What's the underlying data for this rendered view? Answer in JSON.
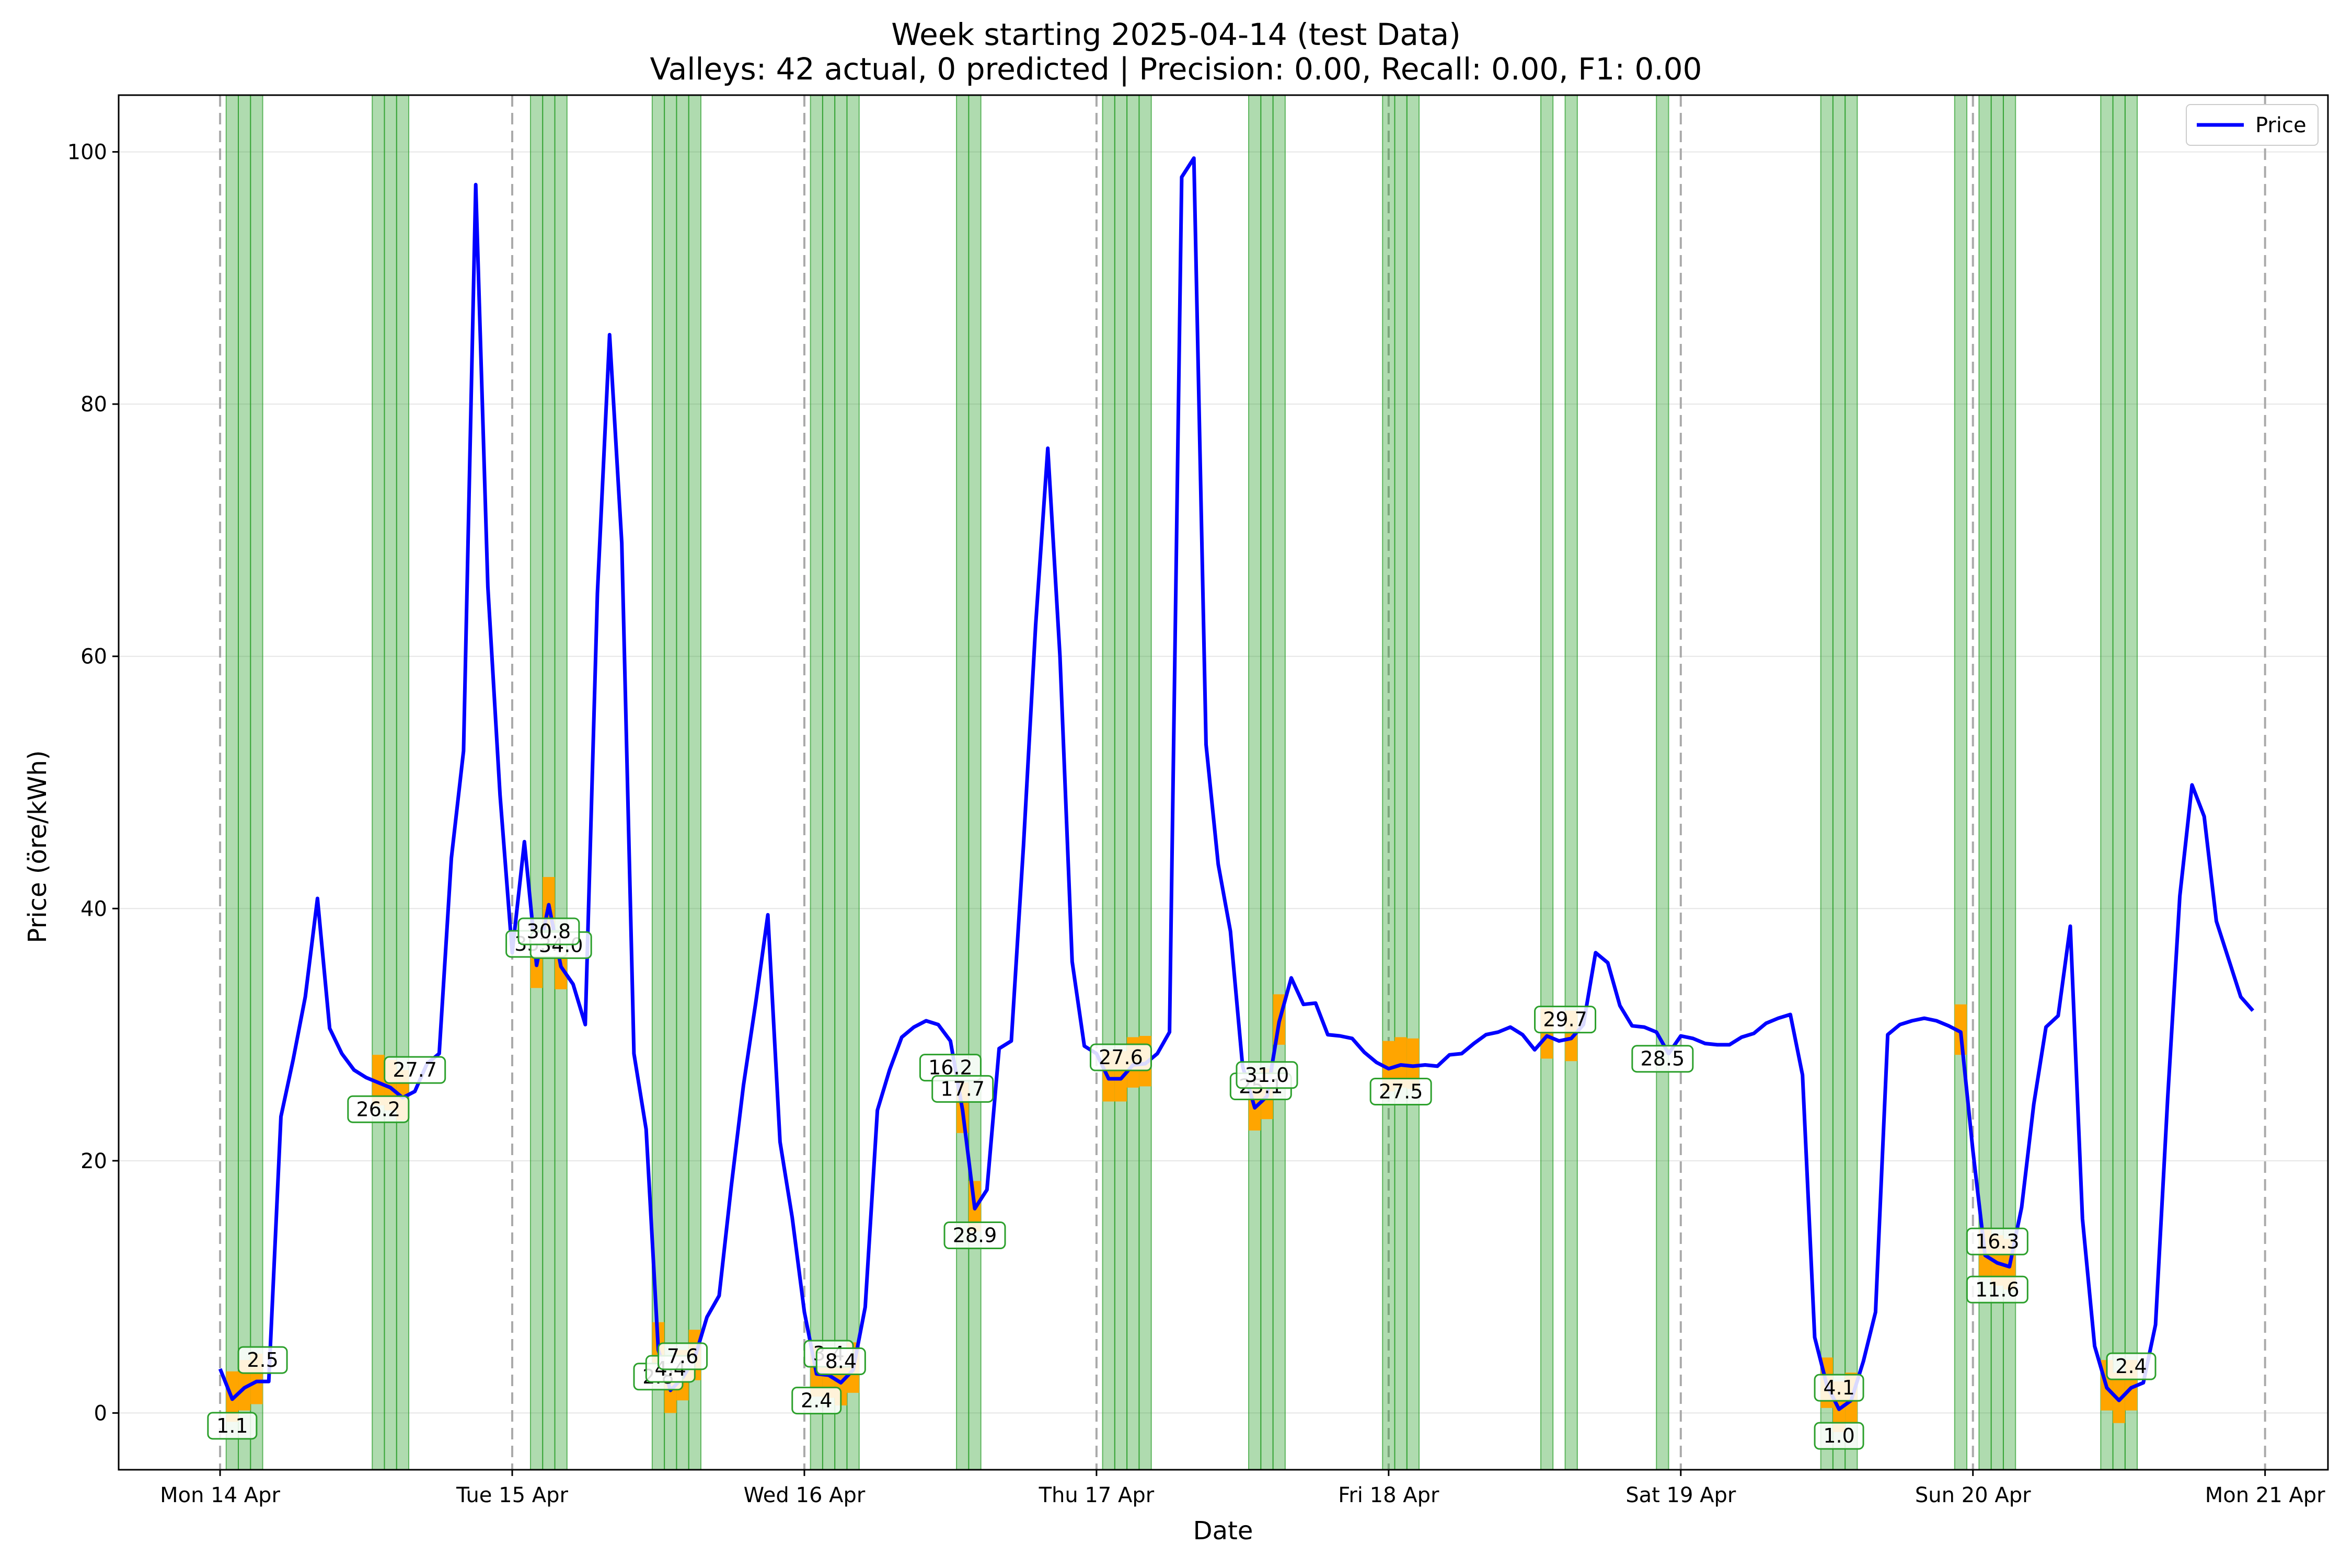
{
  "chart_data": {
    "type": "line",
    "title": "Week starting 2025-04-14 (test Data)",
    "subtitle": "Valleys: 42 actual, 0 predicted | Precision: 0.00, Recall: 0.00, F1: 0.00",
    "xlabel": "Date",
    "ylabel": "Price (öre/kWh)",
    "xlim": [
      "2025-04-13T15:40",
      "2025-04-21T05:10"
    ],
    "ylim": [
      -4.5,
      104.5
    ],
    "yticks": [
      0,
      20,
      40,
      60,
      80,
      100
    ],
    "xticks": [
      {
        "date": "2025-04-14",
        "label": "Mon 14 Apr"
      },
      {
        "date": "2025-04-15",
        "label": "Tue 15 Apr"
      },
      {
        "date": "2025-04-16",
        "label": "Wed 16 Apr"
      },
      {
        "date": "2025-04-17",
        "label": "Thu 17 Apr"
      },
      {
        "date": "2025-04-18",
        "label": "Fri 18 Apr"
      },
      {
        "date": "2025-04-19",
        "label": "Sat 19 Apr"
      },
      {
        "date": "2025-04-20",
        "label": "Sun 20 Apr"
      },
      {
        "date": "2025-04-21",
        "label": "Mon 21 Apr"
      }
    ],
    "grid": "horizontal",
    "legend": {
      "position": "top-right",
      "entries": [
        "Price"
      ]
    },
    "colors": {
      "price": "#0000ff",
      "valley_span": "#2ca02c",
      "valley_bar": "#ffa500",
      "day_line": "#aaaaaa",
      "label_border": "#2ca02c"
    },
    "series": [
      {
        "name": "Price",
        "x": [
          "2025-04-14T00:00",
          "2025-04-14T01:00",
          "2025-04-14T02:00",
          "2025-04-14T03:00",
          "2025-04-14T04:00",
          "2025-04-14T05:00",
          "2025-04-14T06:00",
          "2025-04-14T07:00",
          "2025-04-14T08:00",
          "2025-04-14T09:00",
          "2025-04-14T10:00",
          "2025-04-14T11:00",
          "2025-04-14T12:00",
          "2025-04-14T13:00",
          "2025-04-14T14:00",
          "2025-04-14T15:00",
          "2025-04-14T16:00",
          "2025-04-14T17:00",
          "2025-04-14T18:00",
          "2025-04-14T19:00",
          "2025-04-14T20:00",
          "2025-04-14T21:00",
          "2025-04-14T22:00",
          "2025-04-14T23:00",
          "2025-04-15T00:00",
          "2025-04-15T01:00",
          "2025-04-15T02:00",
          "2025-04-15T03:00",
          "2025-04-15T04:00",
          "2025-04-15T05:00",
          "2025-04-15T06:00",
          "2025-04-15T07:00",
          "2025-04-15T08:00",
          "2025-04-15T09:00",
          "2025-04-15T10:00",
          "2025-04-15T11:00",
          "2025-04-15T12:00",
          "2025-04-15T13:00",
          "2025-04-15T14:00",
          "2025-04-15T15:00",
          "2025-04-15T16:00",
          "2025-04-15T17:00",
          "2025-04-15T18:00",
          "2025-04-15T19:00",
          "2025-04-15T20:00",
          "2025-04-15T21:00",
          "2025-04-15T22:00",
          "2025-04-15T23:00",
          "2025-04-16T00:00",
          "2025-04-16T01:00",
          "2025-04-16T02:00",
          "2025-04-16T03:00",
          "2025-04-16T04:00",
          "2025-04-16T05:00",
          "2025-04-16T06:00",
          "2025-04-16T07:00",
          "2025-04-16T08:00",
          "2025-04-16T09:00",
          "2025-04-16T10:00",
          "2025-04-16T11:00",
          "2025-04-16T12:00",
          "2025-04-16T13:00",
          "2025-04-16T14:00",
          "2025-04-16T15:00",
          "2025-04-16T16:00",
          "2025-04-16T17:00",
          "2025-04-16T18:00",
          "2025-04-16T19:00",
          "2025-04-16T20:00",
          "2025-04-16T21:00",
          "2025-04-16T22:00",
          "2025-04-16T23:00",
          "2025-04-17T00:00",
          "2025-04-17T01:00",
          "2025-04-17T02:00",
          "2025-04-17T03:00",
          "2025-04-17T04:00",
          "2025-04-17T05:00",
          "2025-04-17T06:00",
          "2025-04-17T07:00",
          "2025-04-17T08:00",
          "2025-04-17T09:00",
          "2025-04-17T10:00",
          "2025-04-17T11:00",
          "2025-04-17T12:00",
          "2025-04-17T13:00",
          "2025-04-17T14:00",
          "2025-04-17T15:00",
          "2025-04-17T16:00",
          "2025-04-17T17:00",
          "2025-04-17T18:00",
          "2025-04-17T19:00",
          "2025-04-17T20:00",
          "2025-04-17T21:00",
          "2025-04-17T22:00",
          "2025-04-17T23:00",
          "2025-04-18T00:00",
          "2025-04-18T01:00",
          "2025-04-18T02:00",
          "2025-04-18T03:00",
          "2025-04-18T04:00",
          "2025-04-18T05:00",
          "2025-04-18T06:00",
          "2025-04-18T07:00",
          "2025-04-18T08:00",
          "2025-04-18T09:00",
          "2025-04-18T10:00",
          "2025-04-18T11:00",
          "2025-04-18T12:00",
          "2025-04-18T13:00",
          "2025-04-18T14:00",
          "2025-04-18T15:00",
          "2025-04-18T16:00",
          "2025-04-18T17:00",
          "2025-04-18T18:00",
          "2025-04-18T19:00",
          "2025-04-18T20:00",
          "2025-04-18T21:00",
          "2025-04-18T22:00",
          "2025-04-18T23:00",
          "2025-04-19T00:00",
          "2025-04-19T01:00",
          "2025-04-19T02:00",
          "2025-04-19T03:00",
          "2025-04-19T04:00",
          "2025-04-19T05:00",
          "2025-04-19T06:00",
          "2025-04-19T07:00",
          "2025-04-19T08:00",
          "2025-04-19T09:00",
          "2025-04-19T10:00",
          "2025-04-19T11:00",
          "2025-04-19T12:00",
          "2025-04-19T13:00",
          "2025-04-19T14:00",
          "2025-04-19T15:00",
          "2025-04-19T16:00",
          "2025-04-19T17:00",
          "2025-04-19T18:00",
          "2025-04-19T19:00",
          "2025-04-19T20:00",
          "2025-04-19T21:00",
          "2025-04-19T22:00",
          "2025-04-19T23:00",
          "2025-04-20T00:00",
          "2025-04-20T01:00",
          "2025-04-20T02:00",
          "2025-04-20T03:00",
          "2025-04-20T04:00",
          "2025-04-20T05:00",
          "2025-04-20T06:00",
          "2025-04-20T07:00",
          "2025-04-20T08:00",
          "2025-04-20T09:00",
          "2025-04-20T10:00",
          "2025-04-20T11:00",
          "2025-04-20T12:00",
          "2025-04-20T13:00",
          "2025-04-20T14:00",
          "2025-04-20T15:00",
          "2025-04-20T16:00",
          "2025-04-20T17:00",
          "2025-04-20T18:00",
          "2025-04-20T19:00",
          "2025-04-20T20:00",
          "2025-04-20T21:00",
          "2025-04-20T22:00",
          "2025-04-20T23:00"
        ],
        "values": [
          3.5,
          1.1,
          2.0,
          2.5,
          2.5,
          23.5,
          28.0,
          33.0,
          40.8,
          30.5,
          28.5,
          27.2,
          26.6,
          26.2,
          25.8,
          25.0,
          25.5,
          27.7,
          28.5,
          44.0,
          52.5,
          97.4,
          65.5,
          49.0,
          36.5,
          45.3,
          35.5,
          40.3,
          35.4,
          34.0,
          30.8,
          65.0,
          85.5,
          69.0,
          28.5,
          22.5,
          5.0,
          1.8,
          2.8,
          4.4,
          7.6,
          9.3,
          18.0,
          26.0,
          32.5,
          39.5,
          21.5,
          15.5,
          8.0,
          3.1,
          3.0,
          2.4,
          3.4,
          8.4,
          24.0,
          27.2,
          29.8,
          30.6,
          31.1,
          30.8,
          29.5,
          24.0,
          16.2,
          17.7,
          28.9,
          29.5,
          45.0,
          62.5,
          76.5,
          60.0,
          35.8,
          29.1,
          28.5,
          26.5,
          26.5,
          27.6,
          27.7,
          28.5,
          30.2,
          98.0,
          99.5,
          53.0,
          43.5,
          38.2,
          27.5,
          24.2,
          25.1,
          31.0,
          34.5,
          32.4,
          32.5,
          30.0,
          29.9,
          29.7,
          28.6,
          27.8,
          27.3,
          27.6,
          27.5,
          27.6,
          27.5,
          28.4,
          28.5,
          29.3,
          30.0,
          30.2,
          30.6,
          30.0,
          28.8,
          29.9,
          29.5,
          29.7,
          30.8,
          36.5,
          35.7,
          32.3,
          30.7,
          30.6,
          30.2,
          28.5,
          29.9,
          29.7,
          29.3,
          29.2,
          29.2,
          29.8,
          30.1,
          30.9,
          31.3,
          31.6,
          26.8,
          6.0,
          2.2,
          0.3,
          1.0,
          4.1,
          8.0,
          30.0,
          30.8,
          31.1,
          31.3,
          31.1,
          30.7,
          30.2,
          20.8,
          12.5,
          11.9,
          11.6,
          16.3,
          24.5,
          30.6,
          31.5,
          38.6,
          15.4,
          5.3,
          2.0,
          1.0,
          2.0,
          2.4,
          7.0,
          25.0,
          41.0,
          49.8,
          47.3,
          39.0,
          36.0,
          33.0,
          31.9
        ]
      }
    ],
    "valley_spans": [
      "2025-04-14T01:00",
      "2025-04-14T02:00",
      "2025-04-14T03:00",
      "2025-04-14T13:00",
      "2025-04-14T14:00",
      "2025-04-14T15:00",
      "2025-04-15T02:00",
      "2025-04-15T03:00",
      "2025-04-15T04:00",
      "2025-04-15T12:00",
      "2025-04-15T13:00",
      "2025-04-15T14:00",
      "2025-04-15T15:00",
      "2025-04-16T01:00",
      "2025-04-16T02:00",
      "2025-04-16T03:00",
      "2025-04-16T04:00",
      "2025-04-16T13:00",
      "2025-04-16T14:00",
      "2025-04-17T01:00",
      "2025-04-17T02:00",
      "2025-04-17T03:00",
      "2025-04-17T04:00",
      "2025-04-17T13:00",
      "2025-04-17T14:00",
      "2025-04-17T15:00",
      "2025-04-18T00:00",
      "2025-04-18T01:00",
      "2025-04-18T02:00",
      "2025-04-18T13:00",
      "2025-04-18T15:00",
      "2025-04-19T23:00",
      "2025-04-19T12:00",
      "2025-04-19T13:00",
      "2025-04-19T14:00",
      "2025-04-20T01:00",
      "2025-04-20T02:00",
      "2025-04-20T03:00",
      "2025-04-20T11:00",
      "2025-04-20T12:00",
      "2025-04-20T13:00",
      "2025-04-18T22:30"
    ],
    "valley_labels": [
      {
        "x": "2025-04-14T01:00",
        "value": "1.1",
        "pos": "below"
      },
      {
        "x": "2025-04-14T03:30",
        "value": "2.5",
        "pos": "above"
      },
      {
        "x": "2025-04-14T13:00",
        "value": "26.2",
        "pos": "below"
      },
      {
        "x": "2025-04-14T16:00",
        "value": "27.7",
        "pos": "above"
      },
      {
        "x": "2025-04-15T02:00",
        "value": "35.4",
        "pos": "above"
      },
      {
        "x": "2025-04-15T04:00",
        "value": "34.0",
        "pos": "above"
      },
      {
        "x": "2025-04-15T03:00",
        "value": "30.8",
        "pos": "below"
      },
      {
        "x": "2025-04-15T12:00",
        "value": "2.8",
        "pos": "below"
      },
      {
        "x": "2025-04-15T13:00",
        "value": "4.4",
        "pos": "above"
      },
      {
        "x": "2025-04-15T14:00",
        "value": "7.6",
        "pos": "above"
      },
      {
        "x": "2025-04-16T01:00",
        "value": "2.4",
        "pos": "below"
      },
      {
        "x": "2025-04-16T02:00",
        "value": "3.4",
        "pos": "above"
      },
      {
        "x": "2025-04-16T03:00",
        "value": "8.4",
        "pos": "above"
      },
      {
        "x": "2025-04-16T12:00",
        "value": "16.2",
        "pos": "below"
      },
      {
        "x": "2025-04-16T13:00",
        "value": "17.7",
        "pos": "above"
      },
      {
        "x": "2025-04-16T14:00",
        "value": "28.9",
        "pos": "below"
      },
      {
        "x": "2025-04-17T02:00",
        "value": "27.6",
        "pos": "above"
      },
      {
        "x": "2025-04-17T13:30",
        "value": "25.1",
        "pos": "above"
      },
      {
        "x": "2025-04-17T14:00",
        "value": "31.0",
        "pos": "above"
      },
      {
        "x": "2025-04-18T01:00",
        "value": "27.5",
        "pos": "below"
      },
      {
        "x": "2025-04-18T14:30",
        "value": "29.7",
        "pos": "above"
      },
      {
        "x": "2025-04-18T22:30",
        "value": "28.5",
        "pos": "below"
      },
      {
        "x": "2025-04-19T13:00",
        "value": "4.1",
        "pos": "above"
      },
      {
        "x": "2025-04-19T13:00",
        "value": "1.0",
        "pos": "below"
      },
      {
        "x": "2025-04-20T02:00",
        "value": "16.3",
        "pos": "above"
      },
      {
        "x": "2025-04-20T02:00",
        "value": "11.6",
        "pos": "below"
      },
      {
        "x": "2025-04-20T13:00",
        "value": "2.4",
        "pos": "above"
      }
    ]
  }
}
